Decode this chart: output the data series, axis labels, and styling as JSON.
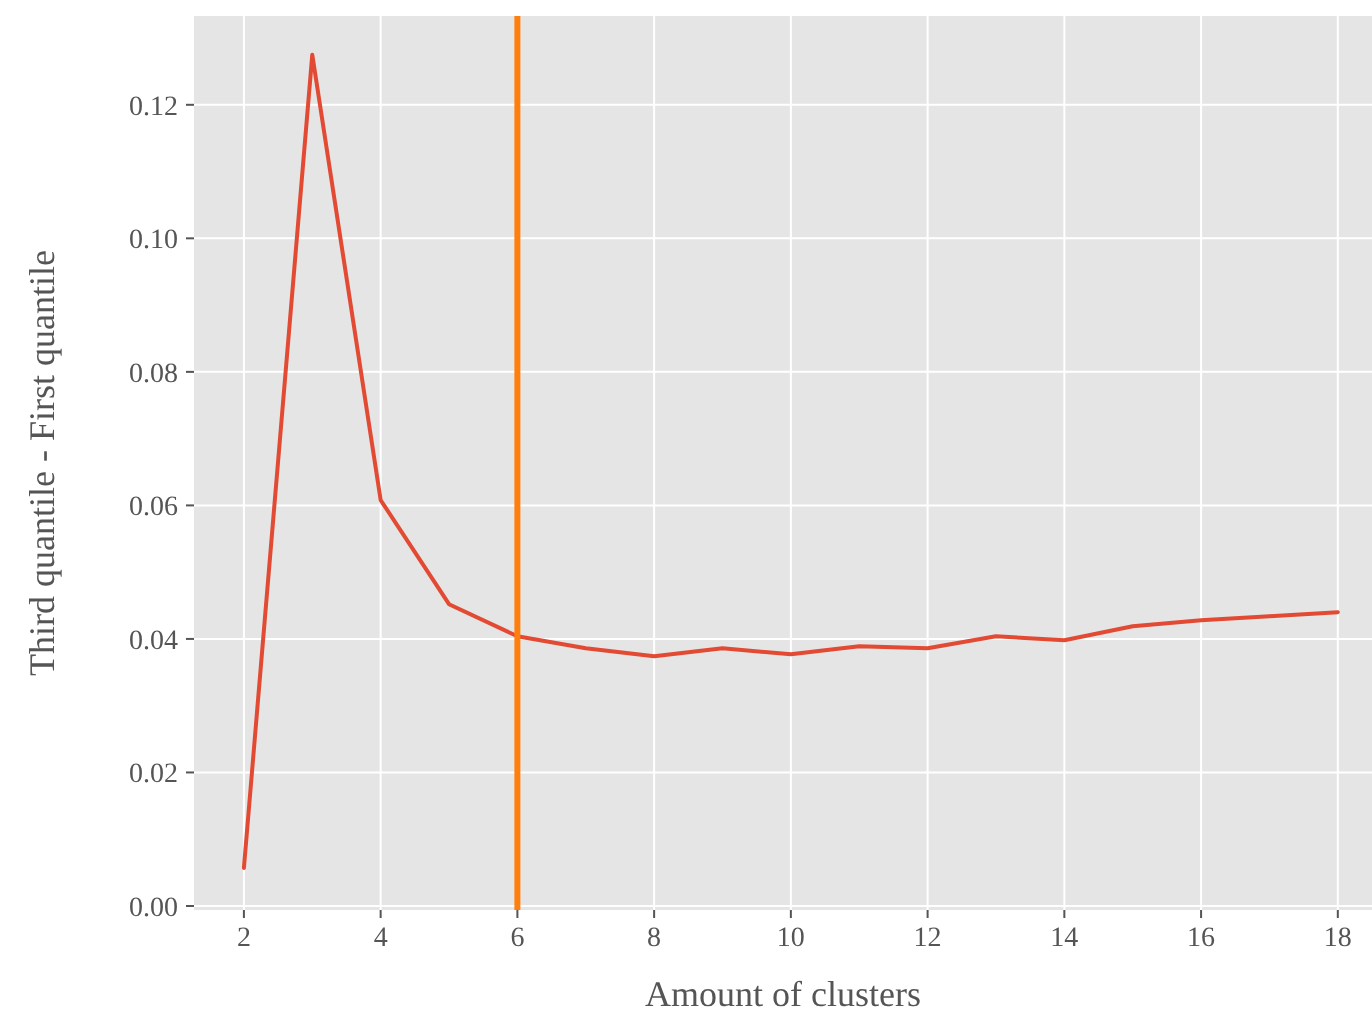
{
  "chart_data": {
    "type": "line",
    "xlabel": "Amount of clusters",
    "ylabel": "Third quantile - First quantile",
    "x": [
      2,
      3,
      4,
      5,
      6,
      7,
      8,
      9,
      10,
      11,
      12,
      13,
      14,
      15,
      16,
      17,
      18
    ],
    "series": [
      {
        "color": "#e24a33",
        "values": [
          0.0057,
          0.1275,
          0.0608,
          0.0452,
          0.0404,
          0.0386,
          0.0374,
          0.0386,
          0.0377,
          0.0389,
          0.0386,
          0.0404,
          0.0398,
          0.0419,
          0.0428,
          0.0434,
          0.044
        ]
      }
    ],
    "xlim": [
      1.27,
      18.5
    ],
    "xticks": [
      2,
      4,
      6,
      8,
      10,
      12,
      14,
      16,
      18
    ],
    "ylim": [
      -0.0006,
      0.1333
    ],
    "yticks": [
      {
        "value": 0,
        "label": "0.00"
      },
      {
        "value": 0.02,
        "label": "0.02"
      },
      {
        "value": 0.04,
        "label": "0.04"
      },
      {
        "value": 0.06,
        "label": "0.06"
      },
      {
        "value": 0.08,
        "label": "0.08"
      },
      {
        "value": 0.1,
        "label": "0.10"
      },
      {
        "value": 0.12,
        "label": "0.12"
      }
    ],
    "ref_lines": [
      {
        "axis": "x",
        "value": 6,
        "color": "#ff7f0e"
      }
    ],
    "grid": true,
    "marker": "none",
    "line_style": "solid"
  }
}
